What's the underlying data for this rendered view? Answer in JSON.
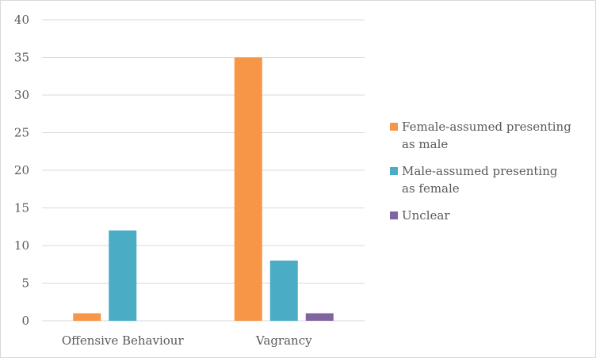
{
  "chart_data": {
    "type": "bar",
    "categories": [
      "Offensive Behaviour",
      "Vagrancy"
    ],
    "series": [
      {
        "name": "Female-assumed presenting as male",
        "values": [
          1,
          35
        ],
        "color": "#F79646"
      },
      {
        "name": "Male-assumed presenting as female",
        "values": [
          12,
          8
        ],
        "color": "#4BACC6"
      },
      {
        "name": "Unclear",
        "values": [
          0,
          1
        ],
        "color": "#8064A2"
      }
    ],
    "legend_lines": [
      [
        "Female-assumed presenting",
        "as male"
      ],
      [
        "Male-assumed presenting",
        "as female"
      ],
      [
        "Unclear"
      ]
    ],
    "yticks": [
      0,
      5,
      10,
      15,
      20,
      25,
      30,
      35,
      40
    ],
    "ylim": [
      0,
      40
    ],
    "grid": true,
    "legend_position": "right",
    "gridline_color": "#d9d9d9",
    "axis_text_color": "#595959"
  }
}
